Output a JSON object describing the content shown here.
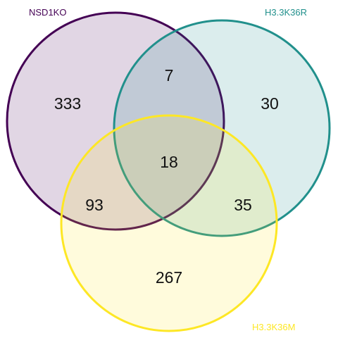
{
  "sets": [
    {
      "key": "a",
      "label": "NSD1KO",
      "color": "#440154"
    },
    {
      "key": "b",
      "label": "H3.3K36R",
      "color": "#21908C"
    },
    {
      "key": "c",
      "label": "H3.3K36M",
      "color": "#FDE725"
    }
  ],
  "regions": {
    "a_only": "333",
    "b_only": "30",
    "c_only": "267",
    "ab": "7",
    "ac": "93",
    "bc": "35",
    "abc": "18"
  }
}
